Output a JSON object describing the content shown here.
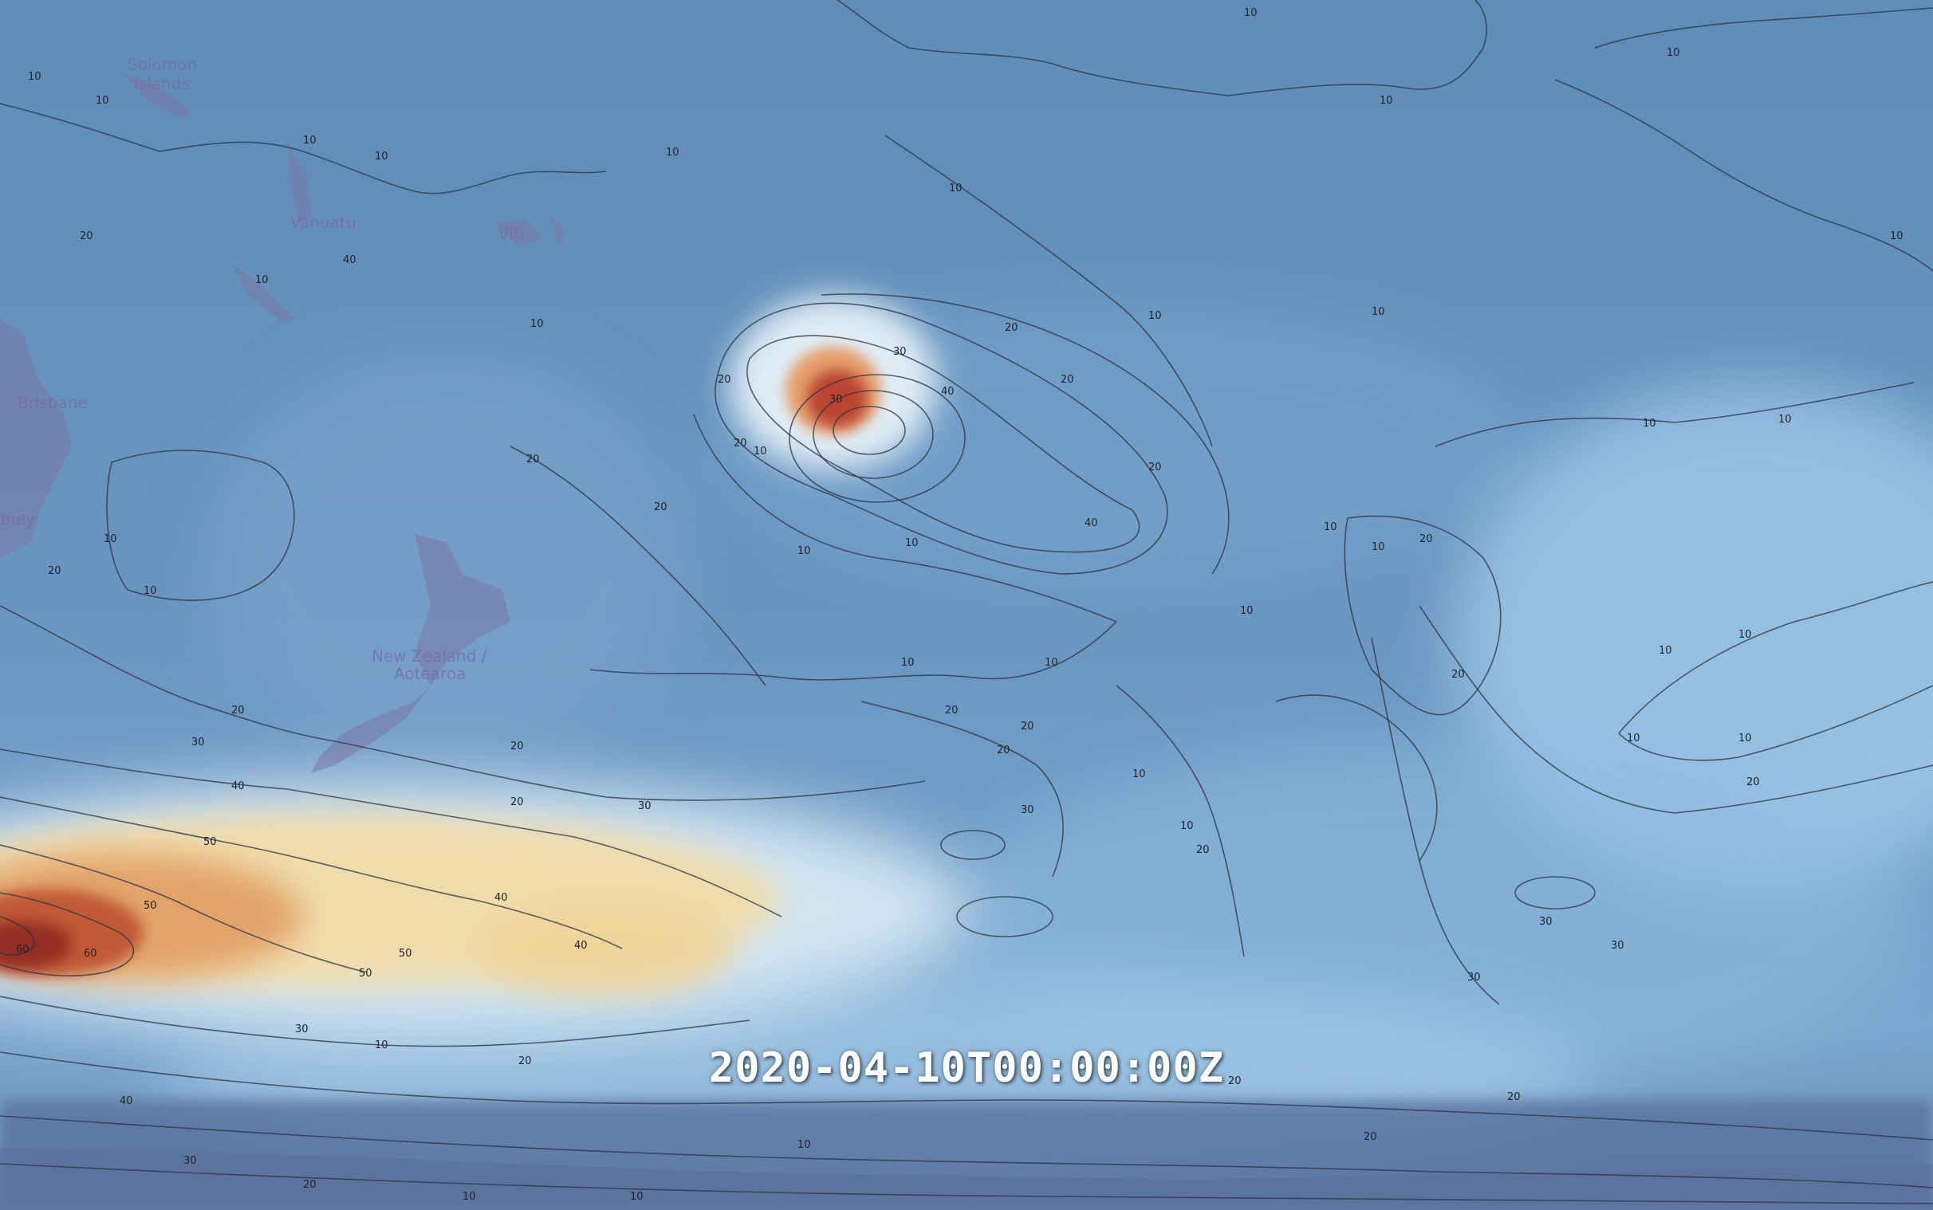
{
  "map": {
    "timestamp": "2020-04-10T00:00:00Z",
    "places": [
      {
        "id": "solomon-islands",
        "name": "Solomon\nIslands"
      },
      {
        "id": "vanuatu",
        "name": "Vanuatu"
      },
      {
        "id": "fiji",
        "name": "Viti"
      },
      {
        "id": "brisbane",
        "name": "Brisbane"
      },
      {
        "id": "sydney",
        "name": "Sydney"
      },
      {
        "id": "new-zealand",
        "name": "New Zealand /\nAotearoa"
      }
    ],
    "contour_levels": [
      10,
      20,
      30,
      40,
      50,
      60
    ],
    "colors": {
      "ocean_base": "#5b87b4",
      "low": "#6f9cc6",
      "mid": "#dbe9f3",
      "high_yellow": "#f0d8a0",
      "high_orange": "#e08a50",
      "peak_red": "#b83a2c",
      "land": "#7a76a8",
      "contour": "#2a3340"
    }
  }
}
